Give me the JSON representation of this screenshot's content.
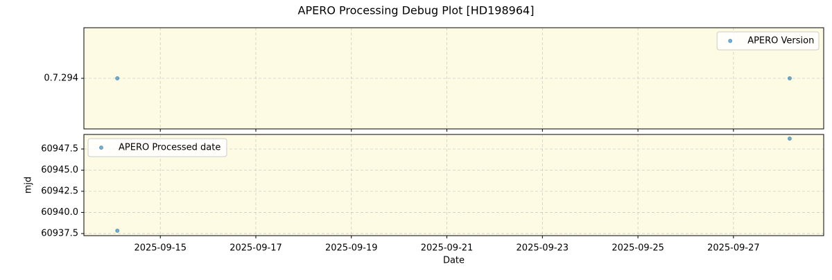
{
  "title": "APERO Processing Debug Plot [HD198964]",
  "chart_data": [
    {
      "type": "scatter",
      "y_type": "category",
      "xlim": [
        "2025-09-13T09:36",
        "2025-09-28T21:20"
      ],
      "xticks": [
        "2025-09-15",
        "2025-09-17",
        "2025-09-19",
        "2025-09-21",
        "2025-09-23",
        "2025-09-25",
        "2025-09-27"
      ],
      "show_xticklabels": false,
      "ycategories": [
        "0.7.294"
      ],
      "series": [
        {
          "name": "APERO Version",
          "color": "#1f77b4",
          "x": [
            "2025-09-14T02:24",
            "2025-09-28T04:15"
          ],
          "values": [
            "0.7.294",
            "0.7.294"
          ]
        }
      ],
      "grid": true,
      "legend": "upper right"
    },
    {
      "type": "scatter",
      "y_type": "linear",
      "xlim": [
        "2025-09-13T09:36",
        "2025-09-28T21:20"
      ],
      "xticks": [
        "2025-09-15",
        "2025-09-17",
        "2025-09-19",
        "2025-09-21",
        "2025-09-23",
        "2025-09-25",
        "2025-09-27"
      ],
      "show_xticklabels": true,
      "xlabel": "Date",
      "ylabel": "mjd",
      "ylim": [
        60937.25,
        60949.22
      ],
      "yticks": [
        60937.5,
        {
          "value": 60940,
          "label": "60940.0"
        },
        60942.5,
        {
          "value": 60945,
          "label": "60945.0"
        },
        60947.5
      ],
      "series": [
        {
          "name": "APERO Processed date",
          "color": "#1f77b4",
          "x": [
            "2025-09-14T02:24",
            "2025-09-28T04:15"
          ],
          "values": [
            60937.83,
            60948.73
          ]
        }
      ],
      "grid": true,
      "legend": "upper left"
    }
  ]
}
